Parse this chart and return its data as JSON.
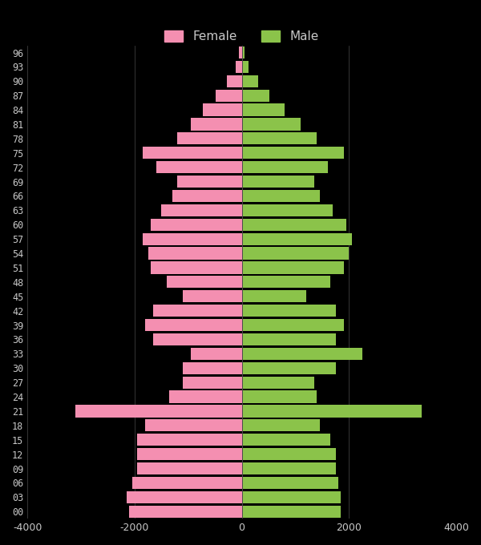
{
  "ages": [
    "00",
    "03",
    "06",
    "09",
    "12",
    "15",
    "18",
    "21",
    "24",
    "27",
    "30",
    "33",
    "36",
    "39",
    "42",
    "45",
    "48",
    "51",
    "54",
    "57",
    "60",
    "63",
    "66",
    "69",
    "72",
    "75",
    "78",
    "81",
    "84",
    "87",
    "90",
    "93",
    "96"
  ],
  "female": [
    -2100,
    -2150,
    -2050,
    -1950,
    -1950,
    -1950,
    -1800,
    -3100,
    -1350,
    -1100,
    -1100,
    -950,
    -1650,
    -1800,
    -1650,
    -1100,
    -1400,
    -1700,
    -1750,
    -1850,
    -1700,
    -1500,
    -1300,
    -1200,
    -1600,
    -1850,
    -1200,
    -950,
    -720,
    -480,
    -280,
    -120,
    -50
  ],
  "male": [
    1850,
    1850,
    1800,
    1750,
    1750,
    1650,
    1450,
    3350,
    1400,
    1350,
    1750,
    2250,
    1750,
    1900,
    1750,
    1200,
    1650,
    1900,
    2000,
    2050,
    1950,
    1700,
    1450,
    1350,
    1600,
    1900,
    1400,
    1100,
    800,
    520,
    300,
    130,
    50
  ],
  "female_color": "#f48fb1",
  "male_color": "#8bc34a",
  "background_color": "#000000",
  "text_color": "#c8c8c8",
  "grid_color": "#4a4a4a",
  "xlim": [
    -4000,
    4000
  ],
  "xticks": [
    -4000,
    -2000,
    0,
    2000,
    4000
  ],
  "bar_height": 0.85
}
